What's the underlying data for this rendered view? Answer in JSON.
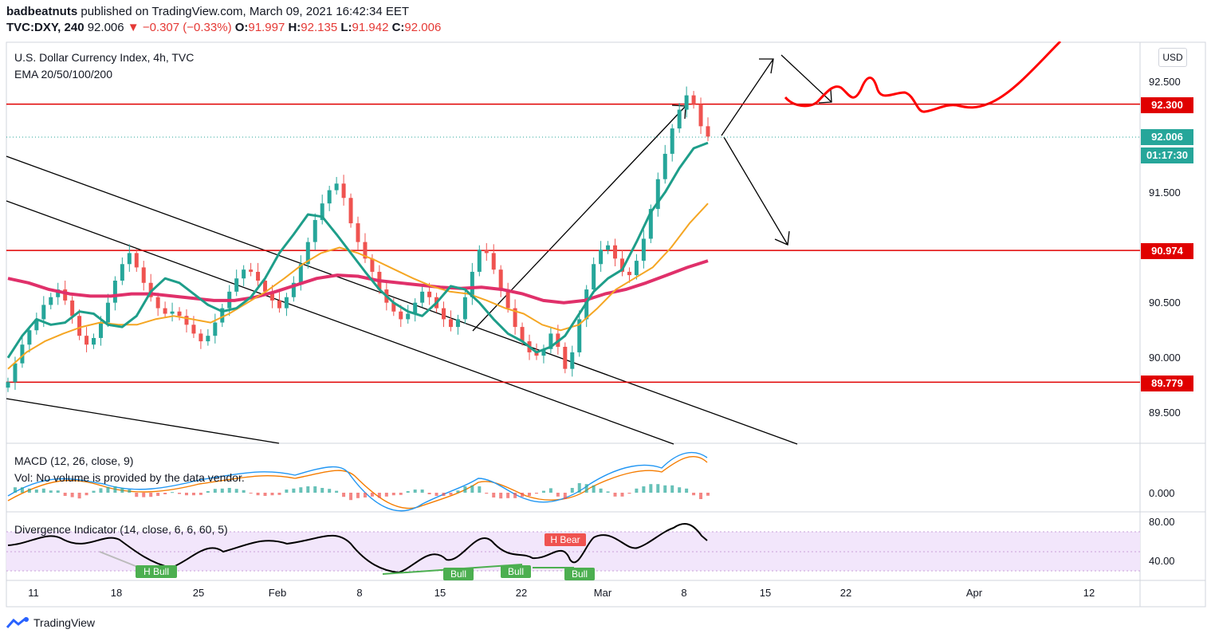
{
  "header": {
    "publisher": "badbeatnuts",
    "published_text": "published on TradingView.com, March 09, 2021 16:42:34 EET",
    "symbol": "TVC:DXY, 240",
    "last": "92.006",
    "change": "−0.307 (−0.33%)",
    "o_label": "O:",
    "o_value": "91.997",
    "h_label": "H:",
    "h_value": "92.135",
    "l_label": "L:",
    "l_value": "91.942",
    "c_label": "C:",
    "c_value": "92.006"
  },
  "main_pane": {
    "title": "U.S. Dollar Currency Index, 4h, TVC",
    "indicator": "EMA 20/50/100/200",
    "currency_button": "USD",
    "price_ticks": [
      "92.500",
      "91.500",
      "90.500",
      "90.000",
      "89.500"
    ],
    "levels": [
      {
        "label": "92.300",
        "value": 92.3
      },
      {
        "label": "90.974",
        "value": 90.974
      },
      {
        "label": "89.779",
        "value": 89.779
      }
    ],
    "last_price_label": "92.006",
    "countdown_label": "01:17:30"
  },
  "macd_pane": {
    "title": "MACD (12, 26, close, 9)",
    "volume_note": "Vol: No volume is provided by the data vendor.",
    "tick": "0.000"
  },
  "divergence_pane": {
    "title": "Divergence Indicator (14, close, 6, 6, 60, 5)",
    "ticks": [
      "80.00",
      "40.00"
    ],
    "tags": [
      {
        "text": "H Bull",
        "kind": "bull"
      },
      {
        "text": "Bull",
        "kind": "bull"
      },
      {
        "text": "Bull",
        "kind": "bull"
      },
      {
        "text": "Bull",
        "kind": "bull"
      },
      {
        "text": "H Bear",
        "kind": "bear"
      }
    ]
  },
  "time_axis": [
    "11",
    "18",
    "25",
    "Feb",
    "8",
    "15",
    "22",
    "Mar",
    "8",
    "15",
    "22",
    "Apr",
    "12"
  ],
  "footer": {
    "brand": "TradingView"
  },
  "colors": {
    "ema20": "#1e9e8a",
    "ema50": "#f5a623",
    "ema100": "#e8a030",
    "ema200": "#e0306a",
    "level": "#e00000",
    "last": "#26a69a",
    "rsi_band": "#f2e6fb"
  },
  "chart_data": {
    "type": "candlestick",
    "title": "U.S. Dollar Currency Index, 4h, TVC",
    "ylim": [
      89.3,
      92.95
    ],
    "x_start": "2021-01-08",
    "x_end": "2021-04-17",
    "closes": [
      89.78,
      89.95,
      90.12,
      90.25,
      90.35,
      90.48,
      90.55,
      90.62,
      90.52,
      90.38,
      90.2,
      90.12,
      90.18,
      90.32,
      90.5,
      90.7,
      90.85,
      90.95,
      90.82,
      90.68,
      90.55,
      90.45,
      90.4,
      90.42,
      90.38,
      90.3,
      90.22,
      90.15,
      90.2,
      90.32,
      90.45,
      90.6,
      90.72,
      90.8,
      90.78,
      90.7,
      90.6,
      90.52,
      90.45,
      90.55,
      90.68,
      90.85,
      91.05,
      91.25,
      91.4,
      91.52,
      91.58,
      91.45,
      91.22,
      91.05,
      90.9,
      90.78,
      90.62,
      90.5,
      90.42,
      90.35,
      90.4,
      90.5,
      90.6,
      90.55,
      90.45,
      90.35,
      90.28,
      90.35,
      90.55,
      90.78,
      90.98,
      90.95,
      90.8,
      90.62,
      90.45,
      90.28,
      90.15,
      90.05,
      90.02,
      90.08,
      90.22,
      90.1,
      89.9,
      90.05,
      90.35,
      90.62,
      90.85,
      90.98,
      91.02,
      90.9,
      90.78,
      90.75,
      90.88,
      91.08,
      91.35,
      91.62,
      91.85,
      92.08,
      92.25,
      92.38,
      92.3,
      92.1,
      92.006
    ],
    "ema20": [
      90.0,
      90.2,
      90.35,
      90.3,
      90.32,
      90.42,
      90.4,
      90.3,
      90.28,
      90.38,
      90.6,
      90.72,
      90.68,
      90.58,
      90.48,
      90.42,
      90.45,
      90.55,
      90.72,
      90.95,
      91.12,
      91.3,
      91.28,
      91.12,
      90.95,
      90.78,
      90.62,
      90.5,
      90.42,
      90.38,
      90.5,
      90.65,
      90.62,
      90.5,
      90.35,
      90.22,
      90.15,
      90.05,
      90.1,
      90.2,
      90.4,
      90.6,
      90.72,
      90.8,
      91.05,
      91.32,
      91.5,
      91.72,
      91.9,
      91.95
    ],
    "ema50": [
      89.9,
      90.05,
      90.15,
      90.22,
      90.28,
      90.32,
      90.3,
      90.3,
      90.35,
      90.38,
      90.35,
      90.32,
      90.4,
      90.5,
      90.6,
      90.72,
      90.85,
      90.95,
      91.0,
      90.95,
      90.88,
      90.8,
      90.72,
      90.65,
      90.6,
      90.58,
      90.52,
      90.45,
      90.4,
      90.3,
      90.25,
      90.3,
      90.45,
      90.62,
      90.72,
      90.82,
      91.0,
      91.22,
      91.4
    ],
    "ema200": [
      90.72,
      90.68,
      90.62,
      90.58,
      90.56,
      90.56,
      90.58,
      90.58,
      90.56,
      90.54,
      90.52,
      90.52,
      90.55,
      90.6,
      90.66,
      90.72,
      90.75,
      90.74,
      90.7,
      90.68,
      90.66,
      90.64,
      90.63,
      90.64,
      90.62,
      90.58,
      90.52,
      90.5,
      90.52,
      90.58,
      90.62,
      90.68,
      90.75,
      90.82,
      90.88
    ]
  }
}
